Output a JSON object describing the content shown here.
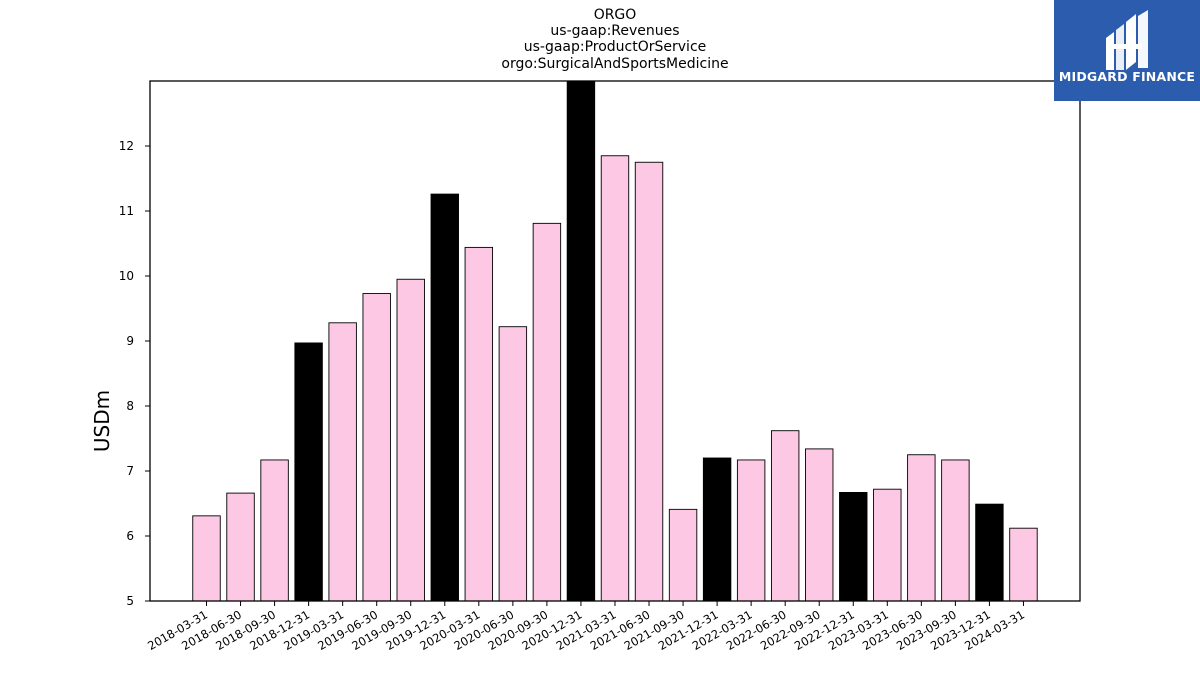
{
  "title_lines": [
    "ORGO",
    "us-gaap:Revenues",
    "us-gaap:ProductOrService",
    "orgo:SurgicalAndSportsMedicine"
  ],
  "logo": {
    "text": "MIDGARD FINANCE",
    "bg_color": "#2b5cad",
    "icon": "midgard-logo-icon"
  },
  "colors": {
    "bar_default": "#fcc8e3",
    "bar_highlight": "#000000",
    "bar_edge": "#000000"
  },
  "chart_data": {
    "type": "bar",
    "title": "ORGO\nus-gaap:Revenues\nus-gaap:ProductOrService\norgo:SurgicalAndSportsMedicine",
    "xlabel": "",
    "ylabel": "USDm",
    "ylim": [
      5,
      13
    ],
    "yticks": [
      5,
      6,
      7,
      8,
      9,
      10,
      11,
      12
    ],
    "grid": false,
    "categories": [
      "2018-03-31",
      "2018-06-30",
      "2018-09-30",
      "2018-12-31",
      "2019-03-31",
      "2019-06-30",
      "2019-09-30",
      "2019-12-31",
      "2020-03-31",
      "2020-06-30",
      "2020-09-30",
      "2020-12-31",
      "2021-03-31",
      "2021-06-30",
      "2021-09-30",
      "2021-12-31",
      "2022-03-31",
      "2022-06-30",
      "2022-09-30",
      "2022-12-31",
      "2023-03-31",
      "2023-06-30",
      "2023-09-30",
      "2023-12-31",
      "2024-03-31"
    ],
    "values": [
      6.31,
      6.66,
      7.17,
      8.97,
      9.28,
      9.73,
      9.95,
      11.26,
      10.44,
      9.22,
      10.81,
      13.0,
      11.85,
      11.75,
      6.41,
      7.2,
      7.17,
      7.62,
      7.34,
      6.67,
      6.72,
      7.25,
      7.17,
      6.49,
      6.12
    ],
    "highlight": [
      false,
      false,
      false,
      true,
      false,
      false,
      false,
      true,
      false,
      false,
      false,
      true,
      false,
      false,
      false,
      true,
      false,
      false,
      false,
      true,
      false,
      false,
      false,
      true,
      false
    ]
  }
}
